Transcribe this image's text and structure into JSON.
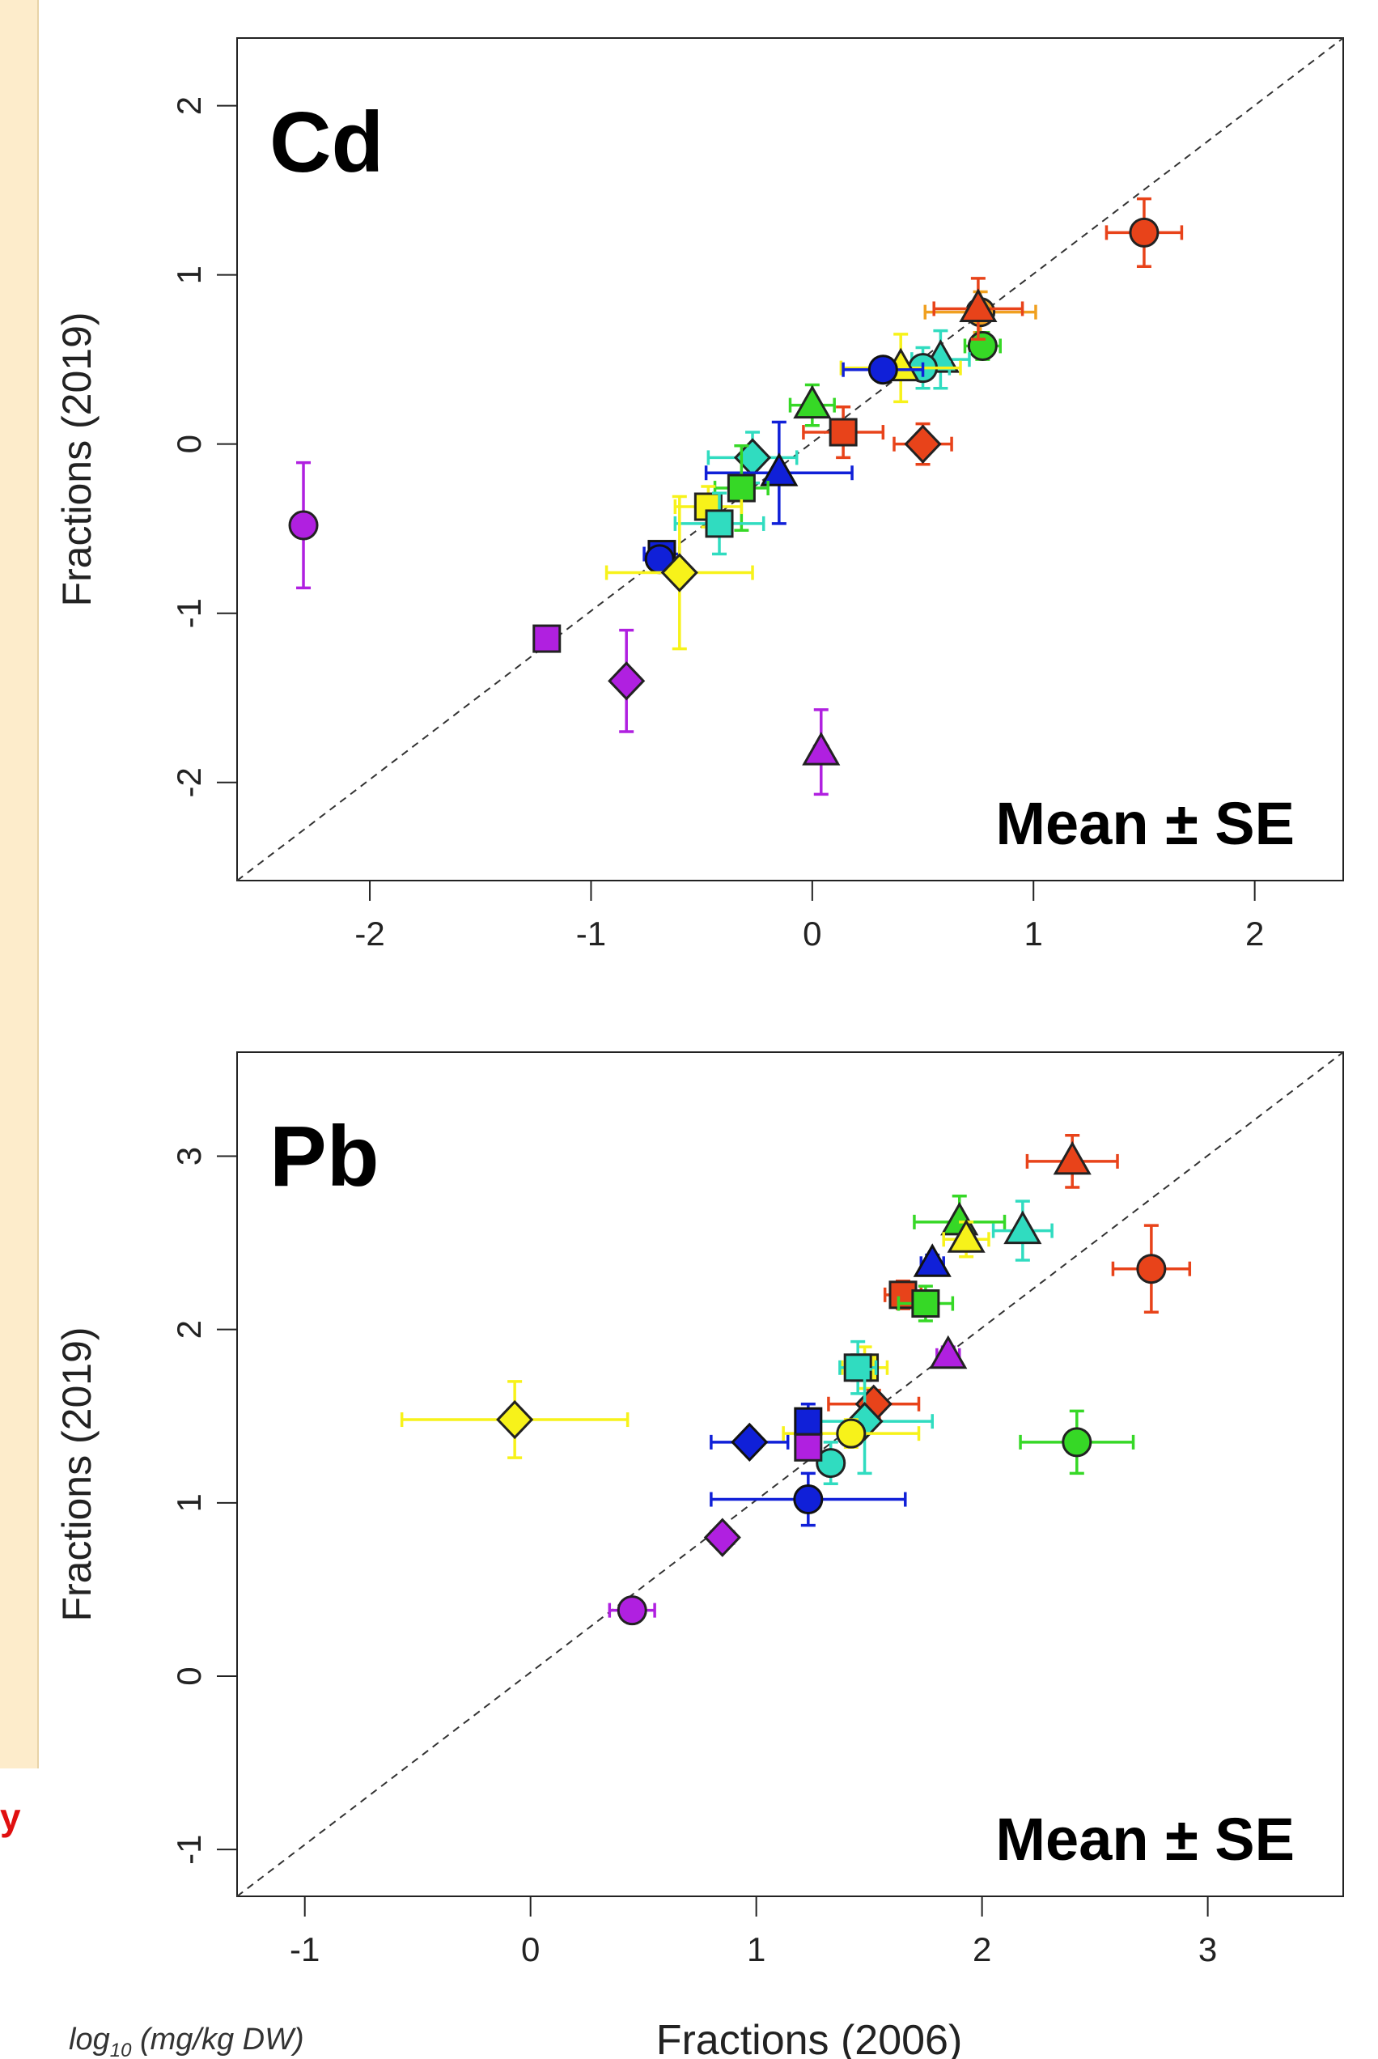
{
  "side_panel": {
    "text": "y"
  },
  "units_label": {
    "main": "log",
    "sub": "10",
    "rest": " (mg/kg DW)"
  },
  "x_axis_label": "Fractions (2006)",
  "colors": {
    "red": "#e8431a",
    "orange": "#f0a020",
    "yellow": "#f7f21a",
    "green": "#36d826",
    "cyan": "#30dcc0",
    "blue": "#1020d8",
    "purple": "#b020e0"
  },
  "chart_data": [
    {
      "type": "scatter",
      "panel_label": "Cd",
      "annotation": "Mean ± SE",
      "xlabel": "",
      "ylabel": "Fractions (2019)",
      "xlim": [
        -2.6,
        2.4
      ],
      "ylim": [
        -2.58,
        2.4
      ],
      "xticks": [
        -2,
        -1,
        0,
        1,
        2
      ],
      "yticks": [
        -2,
        -1,
        0,
        1,
        2
      ],
      "reference_line": "y = x (dashed)",
      "points": [
        {
          "x": 1.5,
          "y": 1.25,
          "xe": 0.17,
          "ye": 0.2,
          "shape": "circle",
          "color": "red"
        },
        {
          "x": 0.76,
          "y": 0.78,
          "xe": 0.25,
          "ye": 0.12,
          "shape": "circle",
          "color": "orange"
        },
        {
          "x": 0.77,
          "y": 0.58,
          "xe": 0.08,
          "ye": 0.08,
          "shape": "circle",
          "color": "green"
        },
        {
          "x": 0.75,
          "y": 0.8,
          "xe": 0.2,
          "ye": 0.18,
          "shape": "triangle",
          "color": "red"
        },
        {
          "x": 0.58,
          "y": 0.5,
          "xe": 0.13,
          "ye": 0.17,
          "shape": "triangle",
          "color": "cyan"
        },
        {
          "x": 0.5,
          "y": 0.45,
          "xe": 0.12,
          "ye": 0.12,
          "shape": "circle",
          "color": "cyan"
        },
        {
          "x": 0.4,
          "y": 0.45,
          "xe": 0.27,
          "ye": 0.2,
          "shape": "triangle",
          "color": "yellow"
        },
        {
          "x": 0.32,
          "y": 0.44,
          "xe": 0.18,
          "ye": 0.05,
          "shape": "circle",
          "color": "blue"
        },
        {
          "x": 0.0,
          "y": 0.23,
          "xe": 0.1,
          "ye": 0.12,
          "shape": "triangle",
          "color": "green"
        },
        {
          "x": 0.14,
          "y": 0.07,
          "xe": 0.18,
          "ye": 0.15,
          "shape": "square",
          "color": "red"
        },
        {
          "x": 0.5,
          "y": 0.0,
          "xe": 0.13,
          "ye": 0.12,
          "shape": "diamond",
          "color": "red"
        },
        {
          "x": -0.27,
          "y": -0.08,
          "xe": 0.2,
          "ye": 0.15,
          "shape": "diamond",
          "color": "cyan"
        },
        {
          "x": -0.15,
          "y": -0.17,
          "xe": 0.33,
          "ye": 0.3,
          "shape": "triangle",
          "color": "blue"
        },
        {
          "x": -0.32,
          "y": -0.26,
          "xe": 0.12,
          "ye": 0.25,
          "shape": "square",
          "color": "green"
        },
        {
          "x": -0.47,
          "y": -0.37,
          "xe": 0.15,
          "ye": 0.12,
          "shape": "square",
          "color": "yellow"
        },
        {
          "x": -0.42,
          "y": -0.47,
          "xe": 0.2,
          "ye": 0.18,
          "shape": "square",
          "color": "cyan"
        },
        {
          "x": -0.68,
          "y": -0.65,
          "xe": 0.08,
          "ye": 0.05,
          "shape": "square",
          "color": "blue"
        },
        {
          "x": -0.69,
          "y": -0.68,
          "xe": 0.05,
          "ye": 0.05,
          "shape": "circle",
          "color": "blue"
        },
        {
          "x": -0.6,
          "y": -0.76,
          "xe": 0.33,
          "ye": 0.45,
          "shape": "diamond",
          "color": "yellow"
        },
        {
          "x": -1.2,
          "y": -1.15,
          "xe": 0.03,
          "ye": 0.03,
          "shape": "square",
          "color": "purple"
        },
        {
          "x": -2.3,
          "y": -0.48,
          "xe": 0.03,
          "ye": 0.37,
          "shape": "circle",
          "color": "purple"
        },
        {
          "x": -0.84,
          "y": -1.4,
          "xe": 0.03,
          "ye": 0.3,
          "shape": "diamond",
          "color": "purple"
        },
        {
          "x": 0.04,
          "y": -1.82,
          "xe": 0.03,
          "ye": 0.25,
          "shape": "triangle",
          "color": "purple"
        }
      ]
    },
    {
      "type": "scatter",
      "panel_label": "Pb",
      "annotation": "Mean ± SE",
      "xlabel": "Fractions (2006)",
      "ylabel": "Fractions (2019)",
      "xlim": [
        -1.3,
        3.6
      ],
      "ylim": [
        -1.27,
        3.6
      ],
      "xticks": [
        -1,
        0,
        1,
        2,
        3
      ],
      "yticks": [
        -1,
        0,
        1,
        2,
        3
      ],
      "reference_line": "y = x (dashed)",
      "points": [
        {
          "x": 2.4,
          "y": 2.97,
          "xe": 0.2,
          "ye": 0.15,
          "shape": "triangle",
          "color": "red"
        },
        {
          "x": 2.75,
          "y": 2.35,
          "xe": 0.17,
          "ye": 0.25,
          "shape": "circle",
          "color": "red"
        },
        {
          "x": 2.18,
          "y": 2.57,
          "xe": 0.13,
          "ye": 0.17,
          "shape": "triangle",
          "color": "cyan"
        },
        {
          "x": 1.9,
          "y": 2.62,
          "xe": 0.2,
          "ye": 0.15,
          "shape": "triangle",
          "color": "green"
        },
        {
          "x": 1.93,
          "y": 2.52,
          "xe": 0.1,
          "ye": 0.1,
          "shape": "triangle",
          "color": "yellow"
        },
        {
          "x": 1.78,
          "y": 2.38,
          "xe": 0.05,
          "ye": 0.05,
          "shape": "triangle",
          "color": "blue"
        },
        {
          "x": 1.65,
          "y": 2.2,
          "xe": 0.08,
          "ye": 0.08,
          "shape": "square",
          "color": "red"
        },
        {
          "x": 1.75,
          "y": 2.15,
          "xe": 0.12,
          "ye": 0.1,
          "shape": "square",
          "color": "green"
        },
        {
          "x": 2.42,
          "y": 1.35,
          "xe": 0.25,
          "ye": 0.18,
          "shape": "circle",
          "color": "green"
        },
        {
          "x": 1.85,
          "y": 1.85,
          "xe": 0.05,
          "ye": 0.05,
          "shape": "triangle",
          "color": "purple"
        },
        {
          "x": 1.48,
          "y": 1.78,
          "xe": 0.1,
          "ye": 0.12,
          "shape": "square",
          "color": "yellow"
        },
        {
          "x": 1.45,
          "y": 1.78,
          "xe": 0.08,
          "ye": 0.15,
          "shape": "square",
          "color": "cyan"
        },
        {
          "x": 1.52,
          "y": 1.57,
          "xe": 0.2,
          "ye": 0.08,
          "shape": "diamond",
          "color": "red"
        },
        {
          "x": 1.48,
          "y": 1.47,
          "xe": 0.3,
          "ye": 0.3,
          "shape": "diamond",
          "color": "cyan"
        },
        {
          "x": 1.42,
          "y": 1.4,
          "xe": 0.3,
          "ye": 0.08,
          "shape": "circle",
          "color": "yellow"
        },
        {
          "x": 1.33,
          "y": 1.23,
          "xe": 0.05,
          "ye": 0.12,
          "shape": "circle",
          "color": "cyan"
        },
        {
          "x": 1.23,
          "y": 1.47,
          "xe": 0.05,
          "ye": 0.1,
          "shape": "square",
          "color": "blue"
        },
        {
          "x": 1.23,
          "y": 1.32,
          "xe": 0.05,
          "ye": 0.05,
          "shape": "square",
          "color": "purple"
        },
        {
          "x": 0.97,
          "y": 1.35,
          "xe": 0.17,
          "ye": 0.05,
          "shape": "diamond",
          "color": "blue"
        },
        {
          "x": 1.23,
          "y": 1.02,
          "xe": 0.43,
          "ye": 0.15,
          "shape": "circle",
          "color": "blue"
        },
        {
          "x": 0.85,
          "y": 0.8,
          "xe": 0.05,
          "ye": 0.05,
          "shape": "diamond",
          "color": "purple"
        },
        {
          "x": 0.45,
          "y": 0.38,
          "xe": 0.1,
          "ye": 0.05,
          "shape": "circle",
          "color": "purple"
        },
        {
          "x": -0.07,
          "y": 1.48,
          "xe": 0.5,
          "ye": 0.22,
          "shape": "diamond",
          "color": "yellow"
        }
      ]
    }
  ]
}
